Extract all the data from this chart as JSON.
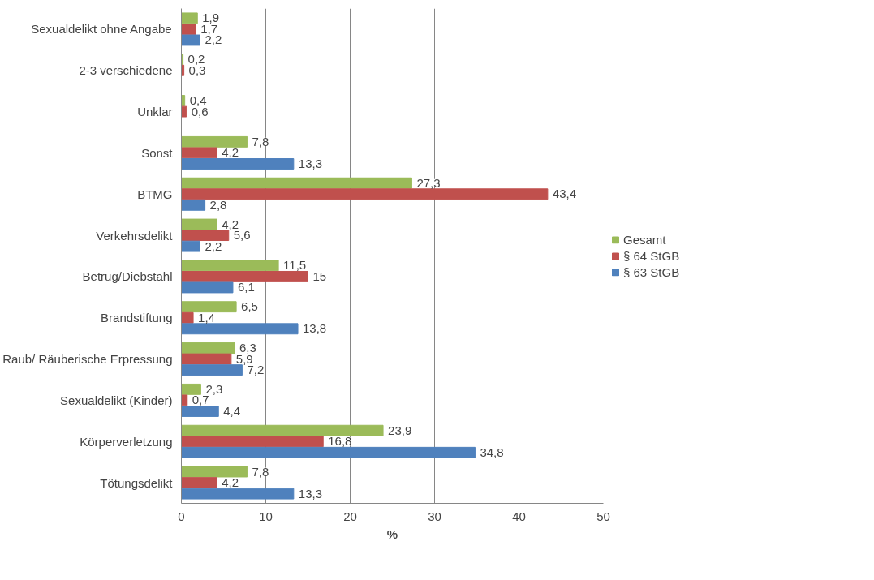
{
  "chart_data": {
    "type": "bar",
    "orientation": "horizontal",
    "xlabel": "%",
    "categories": [
      "Sexualdelikt ohne Angabe",
      "2-3 verschiedene",
      "Unklar",
      "Sonst",
      "BTMG",
      "Verkehrsdelikt",
      "Betrug/Diebstahl",
      "Brandstiftung",
      "Raub/ Räuberische Erpressung",
      "Sexualdelikt (Kinder)",
      "Körperverletzung",
      "Tötungsdelikt"
    ],
    "series": [
      {
        "name": "Gesamt",
        "color": "#9bbb59",
        "values": [
          1.9,
          0.2,
          0.4,
          7.8,
          27.3,
          4.2,
          11.5,
          6.5,
          6.3,
          2.3,
          23.9,
          7.8
        ],
        "value_labels": [
          "1,9",
          "0,2",
          "0,4",
          "7,8",
          "27,3",
          "4,2",
          "11,5",
          "6,5",
          "6,3",
          "2,3",
          "23,9",
          "7,8"
        ]
      },
      {
        "name": "§ 64 StGB",
        "color": "#c0504d",
        "values": [
          1.7,
          0.3,
          0.6,
          4.2,
          43.4,
          5.6,
          15,
          1.4,
          5.9,
          0.7,
          16.8,
          4.2
        ],
        "value_labels": [
          "1,7",
          "0,3",
          "0,6",
          "4,2",
          "43,4",
          "5,6",
          "15",
          "1,4",
          "5,9",
          "0,7",
          "16,8",
          "4,2"
        ]
      },
      {
        "name": "§ 63 StGB",
        "color": "#4f81bd",
        "values": [
          2.2,
          null,
          null,
          13.3,
          2.8,
          2.2,
          6.1,
          13.8,
          7.2,
          4.4,
          34.8,
          13.3
        ],
        "value_labels": [
          "2,2",
          null,
          null,
          "13,3",
          "2,8",
          "2,2",
          "6,1",
          "13,8",
          "7,2",
          "4,4",
          "34,8",
          "13,3"
        ]
      }
    ],
    "xlim": [
      0,
      50
    ],
    "xticks": [
      0,
      10,
      20,
      30,
      40,
      50
    ],
    "grid": "x",
    "legend": "right"
  }
}
